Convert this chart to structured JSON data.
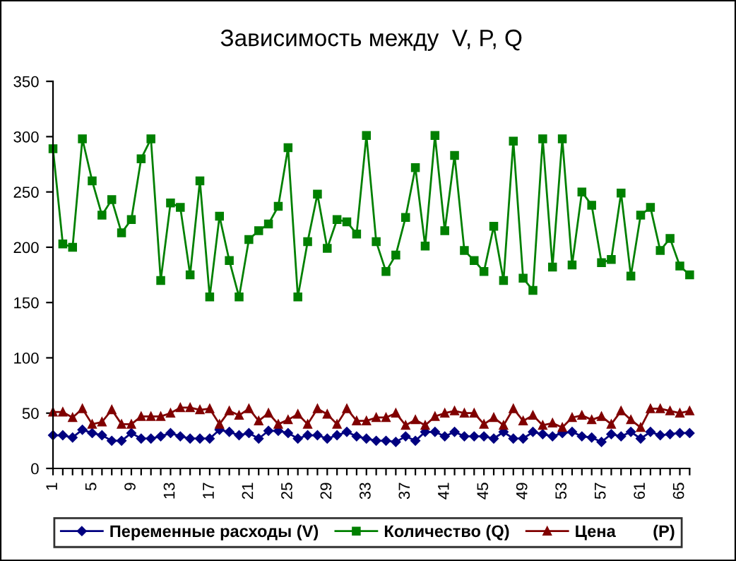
{
  "chart_data": {
    "type": "line",
    "title": "Зависимость между  V, P, Q",
    "categories": [
      "1",
      null,
      null,
      null,
      "5",
      null,
      null,
      null,
      "9",
      null,
      null,
      null,
      "13",
      null,
      null,
      null,
      "17",
      null,
      null,
      null,
      "21",
      null,
      null,
      null,
      "25",
      null,
      null,
      null,
      "29",
      null,
      null,
      null,
      "33",
      null,
      null,
      null,
      "37",
      null,
      null,
      null,
      "41",
      null,
      null,
      null,
      "45",
      null,
      null,
      null,
      "49",
      null,
      null,
      null,
      "53",
      null,
      null,
      null,
      "57",
      null,
      null,
      null,
      "61",
      null,
      null,
      null,
      "65",
      null
    ],
    "series": [
      {
        "name": "Переменные расходы (V)",
        "color": "#000080",
        "marker": "diamond",
        "values": [
          30,
          30,
          28,
          35,
          32,
          30,
          25,
          25,
          32,
          27,
          27,
          29,
          32,
          29,
          27,
          27,
          27,
          35,
          33,
          30,
          32,
          27,
          34,
          34,
          32,
          27,
          30,
          30,
          27,
          30,
          33,
          29,
          27,
          25,
          25,
          24,
          29,
          25,
          33,
          33,
          29,
          33,
          29,
          29,
          29,
          27,
          33,
          27,
          27,
          33,
          31,
          29,
          32,
          33,
          29,
          28,
          24,
          31,
          29,
          33,
          27,
          33,
          30,
          31,
          32,
          32
        ]
      },
      {
        "name": "Количество (Q)",
        "color": "#008000",
        "marker": "square",
        "values": [
          289,
          203,
          200,
          298,
          260,
          229,
          243,
          213,
          225,
          280,
          298,
          170,
          240,
          236,
          175,
          260,
          155,
          228,
          188,
          155,
          207,
          215,
          221,
          237,
          290,
          155,
          205,
          248,
          199,
          225,
          223,
          212,
          301,
          205,
          178,
          193,
          227,
          272,
          201,
          301,
          215,
          283,
          197,
          188,
          178,
          219,
          170,
          296,
          172,
          161,
          298,
          182,
          298,
          184,
          250,
          238,
          186,
          189,
          249,
          174,
          229,
          236,
          197,
          208,
          183,
          175
        ]
      },
      {
        "name": "Цена        (P)",
        "color": "#800000",
        "marker": "triangle",
        "values": [
          51,
          51,
          46,
          54,
          40,
          42,
          53,
          40,
          40,
          47,
          47,
          47,
          50,
          55,
          55,
          53,
          54,
          40,
          52,
          48,
          54,
          43,
          50,
          40,
          44,
          49,
          40,
          54,
          49,
          40,
          54,
          43,
          43,
          46,
          46,
          50,
          39,
          44,
          39,
          47,
          50,
          52,
          50,
          50,
          40,
          46,
          39,
          54,
          43,
          48,
          39,
          41,
          37,
          46,
          48,
          44,
          47,
          40,
          52,
          44,
          37,
          54,
          54,
          52,
          50,
          52
        ]
      }
    ],
    "ylim": [
      0,
      350
    ],
    "yticks": [
      0,
      50,
      100,
      150,
      200,
      250,
      300,
      350
    ],
    "grid": false,
    "legend": "bottom",
    "line_style": "solid"
  }
}
